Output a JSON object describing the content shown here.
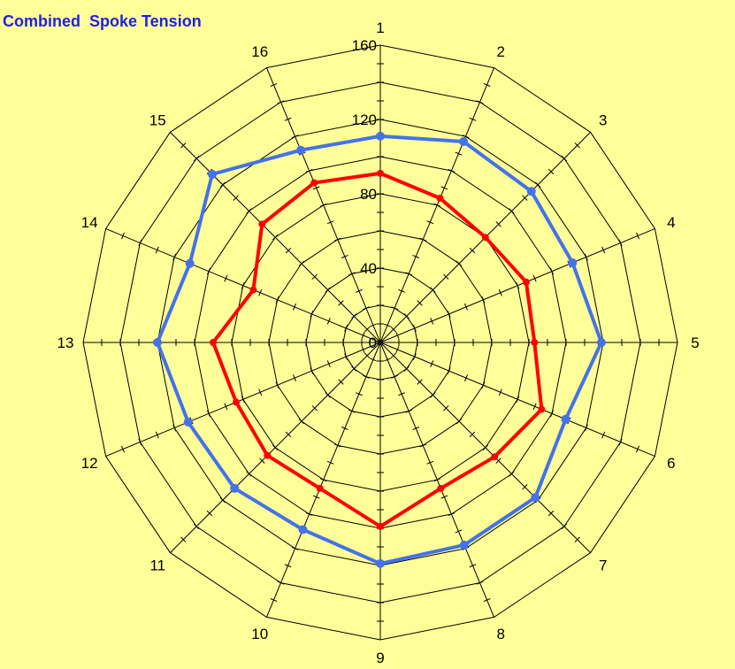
{
  "chart_data": {
    "type": "radar",
    "title": "Combined  Spoke Tension",
    "axis_labels": [
      "1",
      "2",
      "3",
      "4",
      "5",
      "6",
      "7",
      "8",
      "9",
      "10",
      "11",
      "12",
      "13",
      "14",
      "15",
      "16"
    ],
    "radial_ticks": [
      0,
      40,
      80,
      120,
      160
    ],
    "rlim": [
      0,
      160
    ],
    "grid": true,
    "series": [
      {
        "color": "#4472E8",
        "values": [
          111,
          117,
          115,
          112,
          119,
          108,
          118,
          118,
          119,
          109,
          111,
          112,
          120,
          111,
          128,
          112
        ]
      },
      {
        "color": "#FF0000",
        "values": [
          91,
          84,
          80,
          85,
          83,
          94,
          87,
          85,
          99,
          85,
          86,
          84,
          90,
          74,
          90,
          93
        ]
      }
    ]
  }
}
